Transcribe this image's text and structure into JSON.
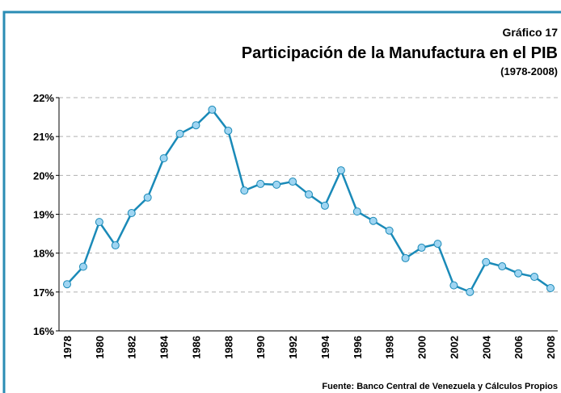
{
  "chart_data": {
    "type": "line",
    "title": "Gráfico 17",
    "subtitle": "Participación de la Manufactura en el PIB",
    "period": "(1978-2008)",
    "source": "Fuente: Banco Central de Venezuela y Cálculos Propios",
    "categories": [
      "1978",
      null,
      "1980",
      null,
      "1982",
      null,
      "1984",
      null,
      "1986",
      null,
      "1988",
      null,
      "1990",
      null,
      "1992",
      null,
      "1994",
      null,
      "1996",
      null,
      "1998",
      null,
      "2000",
      null,
      "2002",
      null,
      "2004",
      null,
      "2006",
      null,
      "2008"
    ],
    "series": [
      {
        "color": "#1a8ab8",
        "marker_color": "#9fd5f2",
        "values": [
          17.2,
          17.65,
          18.8,
          18.2,
          19.03,
          19.43,
          20.44,
          21.07,
          21.29,
          21.69,
          21.15,
          19.61,
          19.78,
          19.76,
          19.84,
          19.51,
          19.22,
          20.13,
          19.07,
          18.83,
          18.58,
          17.87,
          18.14,
          18.24,
          17.17,
          17.0,
          17.77,
          17.66,
          17.48,
          17.39,
          17.1
        ]
      }
    ],
    "ylim": [
      16,
      22
    ],
    "yticks": [
      {
        "value": 16,
        "label": "16%"
      },
      {
        "value": 17,
        "label": "17%"
      },
      {
        "value": 18,
        "label": "18%"
      },
      {
        "value": 19,
        "label": "19%"
      },
      {
        "value": 20,
        "label": "20%"
      },
      {
        "value": 21,
        "label": "21%"
      },
      {
        "value": 22,
        "label": "22%"
      }
    ],
    "grid": true
  }
}
